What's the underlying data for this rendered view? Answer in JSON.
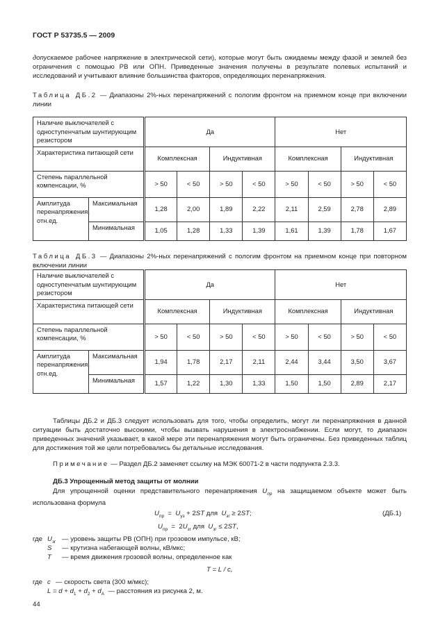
{
  "header": "ГОСТ Р 53735.5 — 2009",
  "intro_italic": "допускаемое",
  "intro": " рабочее напряжение в электрической сети), которые могут быть ожидаемы между фазой и землей без ограничения с помощью РВ или ОПН. Приведенные значения получены в результате полевых испытаний и исследований и учитывают влияние большинства факторов, определяющих перенапряжения.",
  "tables": [
    {
      "caption_prefix": "Таблица ДБ.2",
      "caption": " — Диапазоны 2%-ных перенапряжений с пологим фронтом на приемном конце при включении линии",
      "row_switch": "Наличие выключателей с одноступенчатым шунтирующим резистором",
      "yes": "Да",
      "no": "Нет",
      "row_network": "Характеристика питающей сети",
      "complex": "Комплексная",
      "inductive": "Индуктивная",
      "row_comp": "Степень параллельной компенсации, %",
      "comp": [
        "> 50",
        "< 50",
        "> 50",
        "< 50",
        "> 50",
        "< 50",
        "> 50",
        "< 50"
      ],
      "row_amp": "Амплитуда перенапряжения, отн.ед.",
      "max_label": "Максимальная",
      "min_label": "Минимальная",
      "max": [
        "1,28",
        "2,00",
        "1,89",
        "2,22",
        "2,11",
        "2,59",
        "2,78",
        "2,89"
      ],
      "min": [
        "1,05",
        "1,28",
        "1,33",
        "1,39",
        "1,61",
        "1,39",
        "1,78",
        "1,67"
      ]
    },
    {
      "caption_prefix": "Таблица ДБ.3",
      "caption": " — Диапазоны 2%-ных перенапряжений с пологим фронтом на приемном конце при повторном включении линии",
      "row_switch": "Наличие выключателей с одноступенчатым шунтирующим резистором",
      "yes": "Да",
      "no": "Нет",
      "row_network": "Характеристика питающей сети",
      "complex": "Комплексная",
      "inductive": "Индуктивная",
      "row_comp": "Степень параллельной компенсации, %",
      "comp": [
        "> 50",
        "< 50",
        "> 50",
        "< 50",
        "> 50",
        "< 50",
        "> 50",
        "< 50"
      ],
      "row_amp": "Амплитуда перенапряжения, отн.ед.",
      "max_label": "Максимальная",
      "min_label": "Минимальная",
      "max": [
        "1,94",
        "1,78",
        "2,17",
        "2,11",
        "2,44",
        "3,44",
        "3,50",
        "3,67"
      ],
      "min": [
        "1,57",
        "1,22",
        "1,30",
        "1,33",
        "1,50",
        "1,50",
        "2,89",
        "2,17"
      ]
    }
  ],
  "para1": "Таблицы ДБ.2 и ДБ.3 следует использовать для того, чтобы определить, могут ли перенапряжения в данной ситуации быть достаточно высокими, чтобы вызвать нарушения в электроснабжении. Если могут, то диапазон приведенных значений указывает, в какой мере эти перенапряжения могут быть ограничены. Без приведенных таблиц для достижения той же цели потребовались бы детальные исследования.",
  "note_prefix": "Примечание",
  "note": " — Раздел ДБ.2 заменяет ссылку на МЭК 60071-2 в части подпункта 2.3.3.",
  "section_title": "ДБ.3 Упрощенный метод защиты от молнии",
  "para2a": "Для упрощенной оценки представительного перенапряжения ",
  "para2b": " на защищаемом объекте может быть использована формула",
  "formula1": "U_пр = U_уз + 2ST для U_зг ≥ 2ST;",
  "formula2": "U_пр = 2U_зг для U_зг ≤ 2ST,",
  "formula_no": "(ДБ.1)",
  "where": "где",
  "defs": [
    "— уровень защиты РВ (ОПН) при грозовом импульсе, кВ;",
    "— крутизна набегающей волны, кВ/мкс;",
    "— время движения грозовой волны, определенное как"
  ],
  "formula3": "T = L / c,",
  "def_c": "— скорость света (300 м/мкс);",
  "def_L": "— расстояния из рисунка 2, м.",
  "page_number": "44"
}
